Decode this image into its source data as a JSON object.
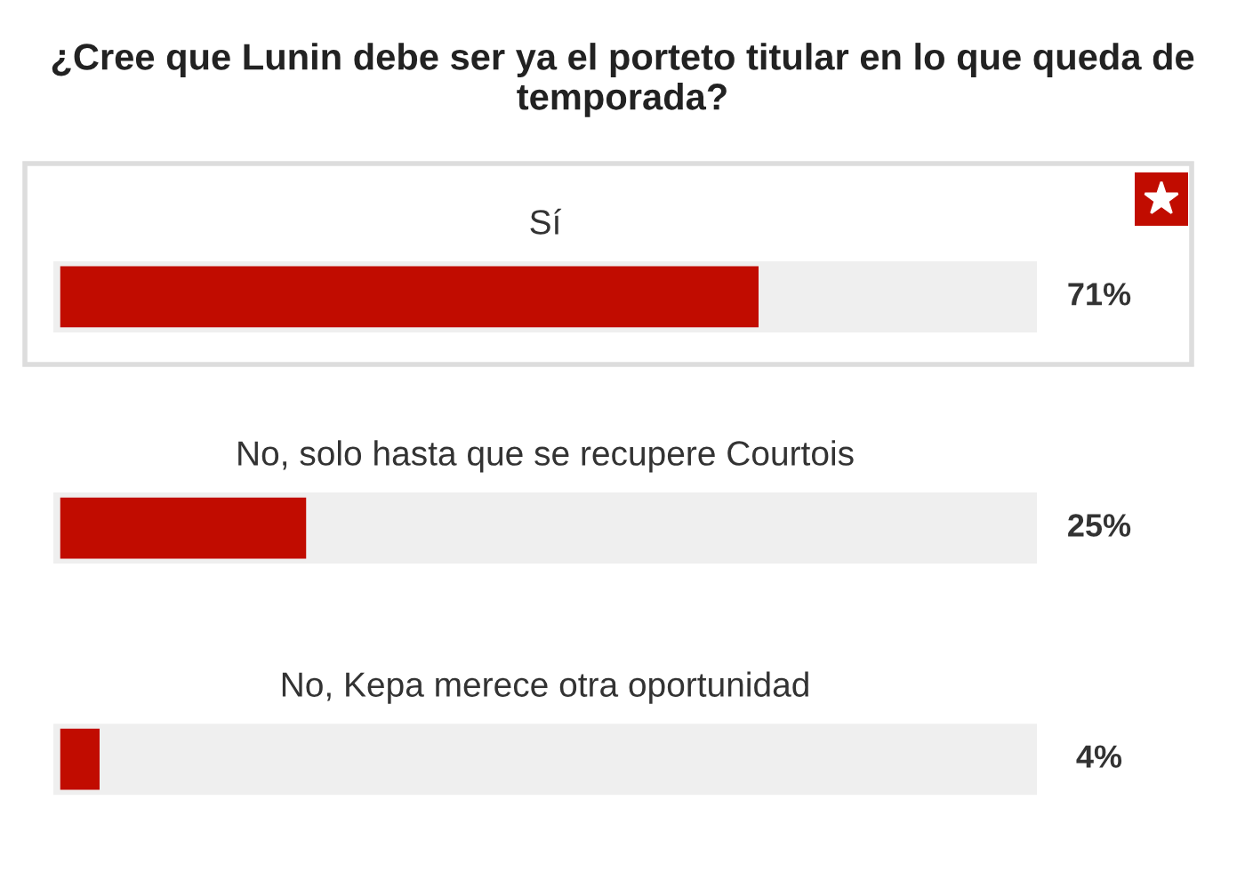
{
  "chart_data": {
    "type": "bar",
    "orientation": "horizontal",
    "title": "¿Cree que Lunin debe ser ya el porteto titular en lo que queda de temporada?",
    "categories": [
      "Sí",
      "No, solo hasta que se recupere Courtois",
      "No, Kepa merece otra oportunidad"
    ],
    "values": [
      71,
      25,
      4
    ],
    "color": "#c10c00",
    "value_labels": [
      "71%",
      "25%",
      "4%"
    ]
  }
}
